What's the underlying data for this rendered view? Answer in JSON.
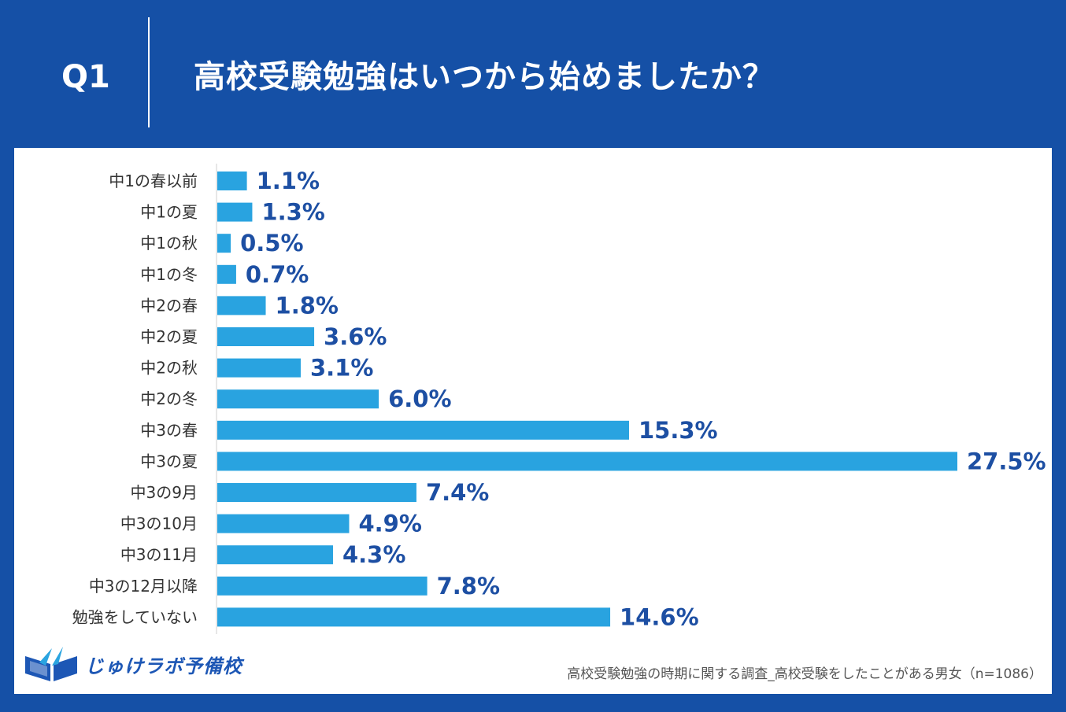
{
  "header": {
    "question_no": "Q1",
    "title": "高校受験勉強はいつから始めましたか？"
  },
  "chart_data": {
    "type": "bar",
    "orientation": "horizontal",
    "title": "高校受験勉強はいつから始めましたか？",
    "xlabel": "",
    "ylabel": "",
    "xlim": [
      0,
      27.5
    ],
    "unit": "%",
    "categories": [
      "中1の春以前",
      "中1の夏",
      "中1の秋",
      "中1の冬",
      "中2の春",
      "中2の夏",
      "中2の秋",
      "中2の冬",
      "中3の春",
      "中3の夏",
      "中3の9月",
      "中3の10月",
      "中3の11月",
      "中3の12月以降",
      "勉強をしていない"
    ],
    "values": [
      1.1,
      1.3,
      0.5,
      0.7,
      1.8,
      3.6,
      3.1,
      6.0,
      15.3,
      27.5,
      7.4,
      4.9,
      4.3,
      7.8,
      14.6
    ],
    "value_labels": [
      "1.1%",
      "1.3%",
      "0.5%",
      "0.7%",
      "1.8%",
      "3.6%",
      "3.1%",
      "6.0%",
      "15.3%",
      "27.5%",
      "7.4%",
      "4.9%",
      "4.3%",
      "7.8%",
      "14.6%"
    ],
    "bar_color": "#29a3e0",
    "label_color": "#1d4fa3"
  },
  "footer": {
    "brand": "じゅけラボ予備校",
    "source_note": "高校受験勉強の時期に関する調査_高校受験をしたことがある男女（n=1086）"
  },
  "colors": {
    "background": "#1550a6",
    "panel": "#ffffff",
    "brand": "#1d57b5"
  }
}
